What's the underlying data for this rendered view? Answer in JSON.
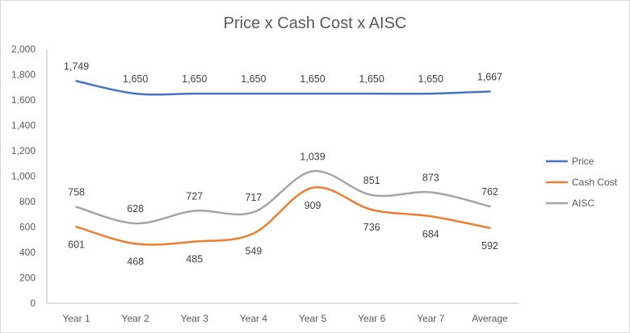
{
  "chart_data": {
    "type": "line",
    "title": "Price x Cash Cost x AISC",
    "categories": [
      "Year 1",
      "Year 2",
      "Year 3",
      "Year 4",
      "Year 5",
      "Year 6",
      "Year 7",
      "Average"
    ],
    "series": [
      {
        "name": "Price",
        "color": "#4472c4",
        "values": [
          1749,
          1650,
          1650,
          1650,
          1650,
          1650,
          1650,
          1667
        ],
        "labels": [
          "1,749",
          "1,650",
          "1,650",
          "1,650",
          "1,650",
          "1,650",
          "1,650",
          "1,667"
        ],
        "label_position": "above"
      },
      {
        "name": "Cash Cost",
        "color": "#ed7d31",
        "values": [
          601,
          468,
          485,
          549,
          909,
          736,
          684,
          592
        ],
        "labels": [
          "601",
          "468",
          "485",
          "549",
          "909",
          "736",
          "684",
          "592"
        ],
        "label_position": "below"
      },
      {
        "name": "AISC",
        "color": "#a5a5a5",
        "values": [
          758,
          628,
          727,
          717,
          1039,
          851,
          873,
          762
        ],
        "labels": [
          "758",
          "628",
          "727",
          "717",
          "1,039",
          "851",
          "873",
          "762"
        ],
        "label_position": "above"
      }
    ],
    "ylim": [
      0,
      2000
    ],
    "yticks": [
      0,
      200,
      400,
      600,
      800,
      1000,
      1200,
      1400,
      1600,
      1800,
      2000
    ],
    "ytick_labels": [
      "0",
      "200",
      "400",
      "600",
      "800",
      "1,000",
      "1,200",
      "1,400",
      "1,600",
      "1,800",
      "2,000"
    ],
    "xlabel": "",
    "ylabel": "",
    "grid": false,
    "smooth": true,
    "legend_position": "right"
  }
}
